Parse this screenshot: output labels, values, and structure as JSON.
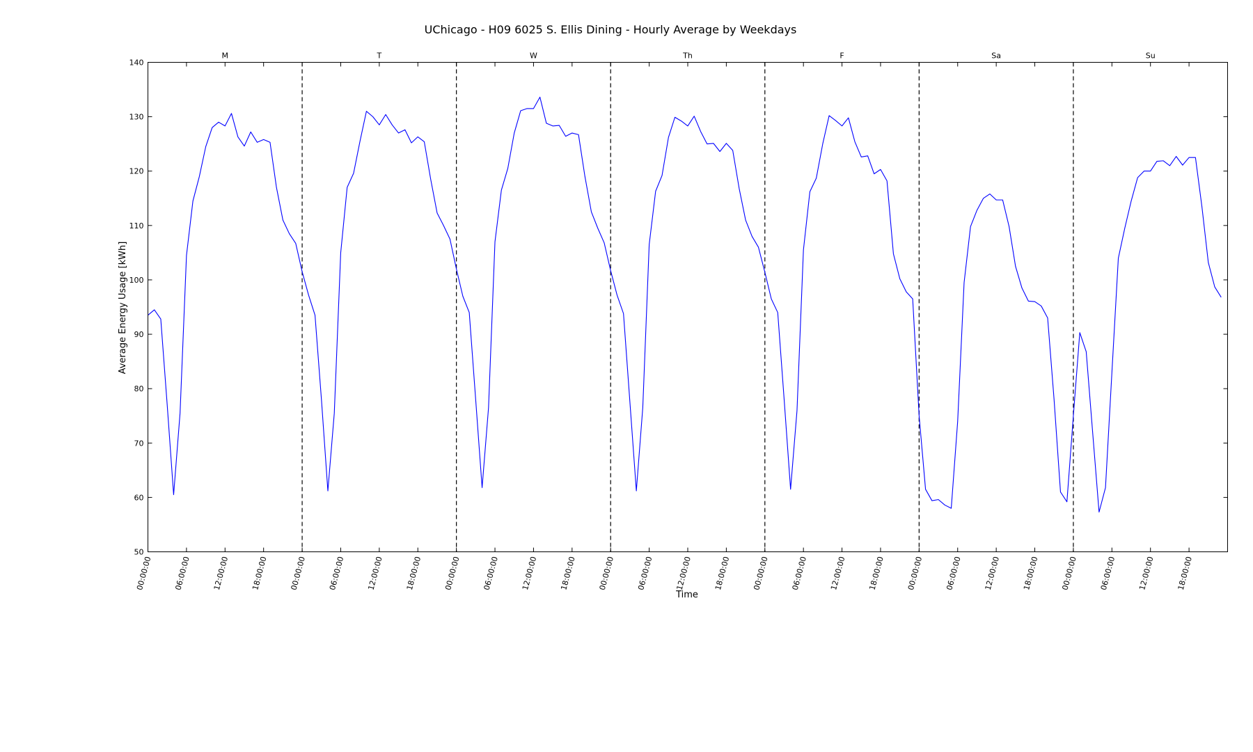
{
  "chart_data": {
    "type": "line",
    "title": "UChicago - H09 6025 S. Ellis Dining - Hourly Average by Weekdays",
    "xlabel": "Time",
    "ylabel": "Average Energy Usage [kWh]",
    "ylim": [
      50,
      140
    ],
    "yticks": [
      "50",
      "60",
      "70",
      "80",
      "90",
      "100",
      "110",
      "120",
      "130",
      "140"
    ],
    "xtick_labels": [
      "00:00:00",
      "06:00:00",
      "12:00:00",
      "18:00:00"
    ],
    "days": [
      "M",
      "T",
      "W",
      "Th",
      "F",
      "Sa",
      "Su"
    ],
    "x_unit": "hour of week",
    "series_color": "#0000ff",
    "divider_style": "dashed",
    "grid": false,
    "series": [
      {
        "values": [
          93.5,
          94.5,
          92.8,
          77.0,
          60.5,
          75.5,
          104.5,
          114.5,
          119.0,
          124.5,
          128.0,
          129.0,
          128.3,
          130.6,
          126.3,
          124.6,
          127.2,
          125.3,
          125.8,
          125.3,
          117.0,
          111.0,
          108.5,
          106.7,
          101.5,
          97.2,
          93.5,
          78.0,
          61.2,
          75.5,
          105.0,
          117.0,
          119.6,
          125.5,
          131.0,
          130.0,
          128.5,
          130.4,
          128.5,
          127.0,
          127.6,
          125.2,
          126.3,
          125.4,
          118.5,
          112.3,
          110.0,
          107.5,
          102.0,
          97.0,
          94.0,
          78.0,
          61.8,
          76.5,
          107.0,
          116.5,
          120.5,
          127.0,
          131.1,
          131.5,
          131.5,
          133.6,
          128.8,
          128.3,
          128.4,
          126.4,
          127.0,
          126.7,
          119.0,
          112.5,
          109.5,
          106.8,
          101.7,
          97.2,
          93.8,
          77.5,
          61.2,
          76.5,
          106.5,
          116.3,
          119.2,
          126.2,
          129.9,
          129.2,
          128.3,
          130.1,
          127.3,
          125.0,
          125.1,
          123.6,
          125.1,
          123.8,
          116.8,
          111.0,
          108.0,
          106.0,
          101.4,
          96.5,
          94.0,
          78.0,
          61.5,
          76.0,
          105.5,
          116.2,
          118.7,
          125.0,
          130.2,
          129.3,
          128.3,
          129.8,
          125.4,
          122.6,
          122.8,
          119.5,
          120.3,
          118.2,
          104.8,
          100.2,
          97.8,
          96.5,
          75.0,
          61.5,
          59.4,
          59.6,
          58.6,
          58.0,
          74.0,
          99.5,
          109.8,
          112.8,
          115.0,
          115.8,
          114.7,
          114.7,
          109.8,
          102.5,
          98.5,
          96.1,
          96.0,
          95.2,
          93.0,
          78.0,
          61.0,
          59.2,
          75.0,
          90.3,
          86.8,
          72.0,
          57.3,
          61.8,
          83.0,
          104.0,
          109.5,
          114.5,
          118.8,
          120.0,
          120.0,
          121.8,
          121.9,
          121.0,
          122.7,
          121.1,
          122.5,
          122.5,
          113.5,
          103.2,
          98.7,
          96.8
        ]
      }
    ]
  }
}
